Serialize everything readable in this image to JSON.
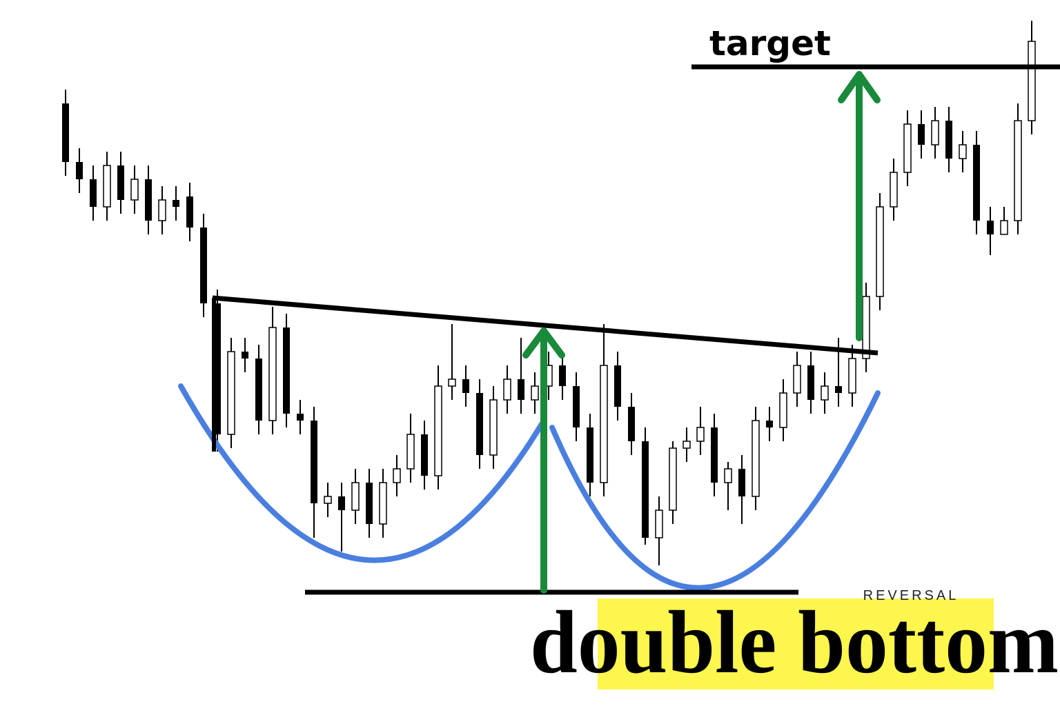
{
  "title": "double bottom",
  "subtitle": "REVERSAL",
  "target_label": "target"
}
